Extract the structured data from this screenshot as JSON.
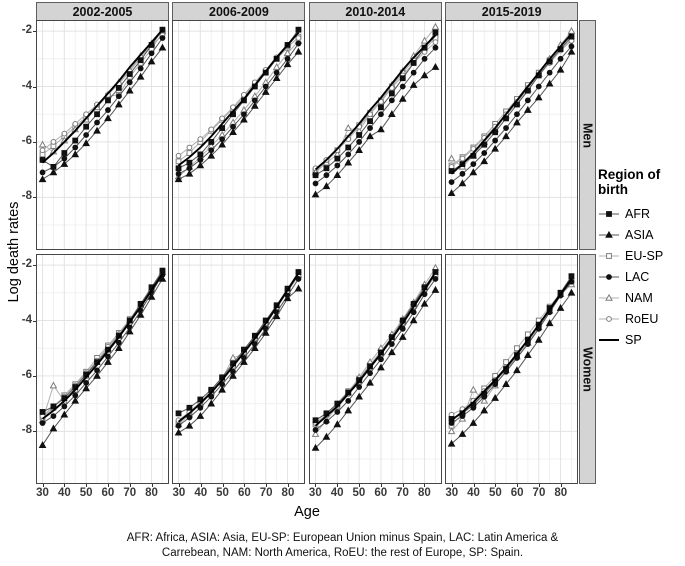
{
  "figure": {
    "y_axis_title": "Log death rates",
    "x_axis_title": "Age",
    "caption_line1": "AFR: Africa, ASIA: Asia,  EU-SP: European Union minus Spain, LAC: Latin America &",
    "caption_line2": "Carrebean, NAM: North America, RoEU: the rest of Europe,  SP: Spain."
  },
  "legend": {
    "title": "Region of birth",
    "entries": [
      {
        "id": "AFR",
        "label": "AFR"
      },
      {
        "id": "ASIA",
        "label": "ASIA"
      },
      {
        "id": "EU-SP",
        "label": "EU-SP"
      },
      {
        "id": "LAC",
        "label": "LAC"
      },
      {
        "id": "NAM",
        "label": "NAM"
      },
      {
        "id": "RoEU",
        "label": "RoEU"
      },
      {
        "id": "SP",
        "label": "SP"
      }
    ]
  },
  "chart_data": {
    "type": "line",
    "x": [
      30,
      35,
      40,
      45,
      50,
      55,
      60,
      65,
      70,
      75,
      80,
      85
    ],
    "x_ticks": [
      30,
      40,
      50,
      60,
      70,
      80
    ],
    "minor_x": [
      35,
      45,
      55,
      65,
      75,
      85
    ],
    "y_ticks": [
      -2,
      -4,
      -6,
      -8
    ],
    "minor_y": [
      -3,
      -5,
      -7,
      -9
    ],
    "xlim": [
      27,
      88
    ],
    "ylim": [
      -9.9,
      -1.6
    ],
    "xlabel": "Age",
    "ylabel": "Log death rates",
    "grid": true,
    "legend_position": "right",
    "facets": {
      "cols": [
        "2002-2005",
        "2006-2009",
        "2010-2014",
        "2015-2019"
      ],
      "rows": [
        "Men",
        "Women"
      ]
    },
    "colors": {
      "strip_bg": "#d4d4d4",
      "panel_border": "#474747",
      "grid_major": "#e3e3e3",
      "grid_minor": "#f0f0f0",
      "black": "#111111",
      "gray": "#7d7d7d",
      "gray_line": "#b0b0b0",
      "dark_line": "#555555"
    },
    "series_styles": [
      {
        "id": "EU-SP",
        "marker": "square",
        "filled": false,
        "stroke": "#7d7d7d",
        "line": "#b0b0b0",
        "lw": 1
      },
      {
        "id": "NAM",
        "marker": "triangle",
        "filled": false,
        "stroke": "#7d7d7d",
        "line": "#b0b0b0",
        "lw": 1
      },
      {
        "id": "RoEU",
        "marker": "circle",
        "filled": false,
        "stroke": "#7d7d7d",
        "line": "#b0b0b0",
        "lw": 1
      },
      {
        "id": "LAC",
        "marker": "circle",
        "filled": true,
        "stroke": "#111111",
        "line": "#555555",
        "lw": 1
      },
      {
        "id": "AFR",
        "marker": "square",
        "filled": true,
        "stroke": "#111111",
        "line": "#555555",
        "lw": 1
      },
      {
        "id": "ASIA",
        "marker": "triangle",
        "filled": true,
        "stroke": "#111111",
        "line": "#555555",
        "lw": 1
      },
      {
        "id": "SP",
        "marker": "none",
        "filled": false,
        "stroke": "#000000",
        "line": "#000000",
        "lw": 1.9
      }
    ],
    "panels": [
      {
        "row": "Men",
        "col": "2002-2005",
        "series": {
          "AFR": [
            -6.65,
            -6.9,
            -6.4,
            -5.95,
            -5.45,
            -5.0,
            -4.5,
            -4.05,
            -3.55,
            -3.05,
            -2.5,
            -1.95
          ],
          "ASIA": [
            -7.35,
            -7.1,
            -6.8,
            -6.45,
            -6.05,
            -5.6,
            -5.15,
            -4.65,
            -4.15,
            -3.65,
            -3.1,
            -2.6
          ],
          "EU-SP": [
            -6.45,
            -6.15,
            -5.8,
            -5.45,
            -5.1,
            -4.7,
            -4.35,
            -4.3,
            -3.65,
            -3.15,
            -2.65,
            -2.05
          ],
          "LAC": [
            -7.1,
            -6.9,
            -6.6,
            -6.2,
            -5.75,
            -5.3,
            -4.85,
            -4.35,
            -3.85,
            -3.35,
            -2.8,
            -2.25
          ],
          "NAM": [
            -6.1,
            -6.35,
            -5.95,
            -5.55,
            -5.2,
            -4.75,
            -4.3,
            -3.85,
            -3.4,
            -2.9,
            -2.45,
            -2.0
          ],
          "RoEU": [
            -6.3,
            -6.0,
            -5.7,
            -5.35,
            -5.0,
            -4.65,
            -4.3,
            -3.9,
            -3.45,
            -2.95,
            -2.5,
            -2.15
          ],
          "SP": [
            -6.75,
            -6.4,
            -6.0,
            -5.6,
            -5.15,
            -4.7,
            -4.25,
            -3.8,
            -3.3,
            -2.85,
            -2.4,
            -1.95
          ]
        }
      },
      {
        "row": "Men",
        "col": "2006-2009",
        "series": {
          "AFR": [
            -6.95,
            -6.75,
            -6.45,
            -6.0,
            -5.5,
            -5.0,
            -4.5,
            -4.0,
            -3.5,
            -3.0,
            -2.5,
            -1.95
          ],
          "ASIA": [
            -7.35,
            -7.15,
            -6.85,
            -6.5,
            -6.1,
            -5.65,
            -5.2,
            -4.7,
            -4.2,
            -3.7,
            -3.2,
            -2.75
          ],
          "EU-SP": [
            -6.7,
            -6.4,
            -6.0,
            -5.6,
            -5.2,
            -4.8,
            -4.35,
            -3.9,
            -3.45,
            -3.0,
            -2.6,
            -2.2
          ],
          "LAC": [
            -7.15,
            -6.95,
            -6.65,
            -6.3,
            -5.9,
            -5.45,
            -5.0,
            -4.5,
            -4.0,
            -3.5,
            -3.0,
            -2.45
          ],
          "NAM": [
            -7.25,
            -6.9,
            -6.55,
            -6.15,
            -5.75,
            -5.3,
            -4.85,
            -4.35,
            -3.85,
            -3.3,
            -2.8,
            -2.35
          ],
          "RoEU": [
            -6.5,
            -6.2,
            -5.9,
            -5.55,
            -5.15,
            -4.75,
            -4.3,
            -3.85,
            -3.4,
            -2.95,
            -2.55,
            -2.25
          ],
          "SP": [
            -6.85,
            -6.55,
            -6.2,
            -5.8,
            -5.35,
            -4.9,
            -4.45,
            -3.95,
            -3.45,
            -2.95,
            -2.5,
            -2.05
          ]
        }
      },
      {
        "row": "Men",
        "col": "2010-2014",
        "series": {
          "AFR": [
            -7.2,
            -6.95,
            -6.6,
            -6.2,
            -5.75,
            -5.25,
            -4.75,
            -4.25,
            -3.7,
            -3.15,
            -2.6,
            -2.05
          ],
          "ASIA": [
            -7.9,
            -7.6,
            -7.2,
            -6.75,
            -6.3,
            -5.8,
            -5.55,
            -5.0,
            -4.45,
            -3.95,
            -3.6,
            -3.3
          ],
          "EU-SP": [
            -7.05,
            -6.7,
            -6.3,
            -5.85,
            -5.4,
            -4.95,
            -4.5,
            -4.0,
            -3.5,
            -3.05,
            -2.65,
            -2.25
          ],
          "LAC": [
            -7.5,
            -7.2,
            -6.85,
            -6.45,
            -6.0,
            -5.5,
            -5.0,
            -4.5,
            -4.0,
            -3.5,
            -3.0,
            -2.6
          ],
          "NAM": [
            -7.1,
            -6.75,
            -6.45,
            -5.5,
            -5.6,
            -5.0,
            -4.5,
            -3.95,
            -3.45,
            -2.9,
            -2.35,
            -1.85
          ],
          "RoEU": [
            -6.95,
            -6.65,
            -6.3,
            -5.9,
            -5.45,
            -5.0,
            -4.55,
            -4.05,
            -3.6,
            -3.15,
            -2.75,
            -2.4
          ],
          "SP": [
            -7.0,
            -6.65,
            -6.25,
            -5.8,
            -5.35,
            -4.85,
            -4.4,
            -3.9,
            -3.4,
            -2.95,
            -2.55,
            -2.15
          ]
        }
      },
      {
        "row": "Men",
        "col": "2015-2019",
        "series": {
          "AFR": [
            -7.05,
            -6.8,
            -6.5,
            -6.1,
            -5.65,
            -5.15,
            -4.65,
            -4.15,
            -3.6,
            -3.1,
            -2.65,
            -2.2
          ],
          "ASIA": [
            -7.85,
            -7.5,
            -7.1,
            -6.7,
            -6.25,
            -5.8,
            -5.3,
            -4.85,
            -4.4,
            -3.9,
            -3.4,
            -2.75
          ],
          "EU-SP": [
            -6.85,
            -6.55,
            -6.2,
            -5.8,
            -5.35,
            -4.9,
            -4.45,
            -3.95,
            -3.5,
            -3.05,
            -2.65,
            -2.3
          ],
          "LAC": [
            -7.45,
            -7.15,
            -6.8,
            -6.4,
            -5.95,
            -5.5,
            -5.0,
            -4.5,
            -4.0,
            -3.5,
            -3.0,
            -2.55
          ],
          "NAM": [
            -6.6,
            -6.9,
            -6.5,
            -6.0,
            -5.55,
            -5.05,
            -4.6,
            -4.1,
            -3.55,
            -3.0,
            -2.5,
            -2.0
          ],
          "RoEU": [
            -6.9,
            -6.6,
            -6.25,
            -5.85,
            -5.45,
            -5.0,
            -4.55,
            -4.05,
            -3.6,
            -3.15,
            -2.7,
            -2.35
          ],
          "SP": [
            -7.15,
            -6.8,
            -6.4,
            -5.95,
            -5.5,
            -5.0,
            -4.5,
            -4.0,
            -3.5,
            -3.0,
            -2.55,
            -2.1
          ]
        }
      },
      {
        "row": "Women",
        "col": "2002-2005",
        "series": {
          "AFR": [
            -7.3,
            -7.1,
            -6.8,
            -6.4,
            -5.95,
            -5.5,
            -5.05,
            -4.55,
            -4.0,
            -3.4,
            -2.8,
            -2.2
          ],
          "ASIA": [
            -8.5,
            -7.9,
            -7.4,
            -6.9,
            -6.45,
            -6.0,
            -5.5,
            -5.0,
            -4.4,
            -3.8,
            -3.15,
            -2.5
          ],
          "EU-SP": [
            -7.5,
            -7.15,
            -6.7,
            -6.3,
            -5.85,
            -5.35,
            -4.9,
            -4.45,
            -3.95,
            -3.4,
            -2.85,
            -2.25
          ],
          "LAC": [
            -7.7,
            -7.45,
            -7.1,
            -6.7,
            -6.25,
            -5.8,
            -5.3,
            -4.8,
            -4.25,
            -3.65,
            -3.0,
            -2.35
          ],
          "NAM": [
            -7.6,
            -6.35,
            -6.9,
            -6.5,
            -6.0,
            -5.5,
            -5.0,
            -4.5,
            -4.0,
            -3.45,
            -2.85,
            -2.25
          ],
          "RoEU": [
            -7.45,
            -7.1,
            -6.75,
            -6.35,
            -5.9,
            -5.45,
            -4.95,
            -4.5,
            -4.0,
            -3.45,
            -2.9,
            -2.3
          ],
          "SP": [
            -7.55,
            -7.25,
            -6.9,
            -6.5,
            -6.05,
            -5.6,
            -5.1,
            -4.6,
            -4.05,
            -3.5,
            -2.9,
            -2.3
          ]
        }
      },
      {
        "row": "Women",
        "col": "2006-2009",
        "series": {
          "AFR": [
            -7.35,
            -7.15,
            -6.85,
            -6.5,
            -6.05,
            -5.55,
            -5.05,
            -4.55,
            -4.0,
            -3.45,
            -2.85,
            -2.25
          ],
          "ASIA": [
            -8.05,
            -7.8,
            -7.45,
            -7.0,
            -6.5,
            -6.0,
            -5.5,
            -5.0,
            -4.45,
            -3.85,
            -3.2,
            -2.85
          ],
          "EU-SP": [
            -7.7,
            -7.35,
            -6.95,
            -6.55,
            -6.1,
            -5.6,
            -5.1,
            -4.6,
            -4.05,
            -3.5,
            -2.95,
            -2.35
          ],
          "LAC": [
            -7.8,
            -7.5,
            -7.15,
            -6.75,
            -6.3,
            -5.85,
            -5.35,
            -4.85,
            -4.3,
            -3.7,
            -3.1,
            -2.5
          ],
          "NAM": [
            -7.75,
            -7.4,
            -7.0,
            -6.6,
            -6.1,
            -5.35,
            -5.2,
            -4.7,
            -4.15,
            -3.55,
            -2.95,
            -2.35
          ],
          "RoEU": [
            -7.6,
            -7.3,
            -6.95,
            -6.55,
            -6.1,
            -5.65,
            -5.15,
            -4.65,
            -4.1,
            -3.55,
            -2.95,
            -2.4
          ],
          "SP": [
            -7.65,
            -7.35,
            -7.0,
            -6.6,
            -6.15,
            -5.65,
            -5.15,
            -4.65,
            -4.1,
            -3.5,
            -2.9,
            -2.3
          ]
        }
      },
      {
        "row": "Women",
        "col": "2010-2014",
        "series": {
          "AFR": [
            -7.6,
            -7.35,
            -7.0,
            -6.6,
            -6.15,
            -5.65,
            -5.15,
            -4.6,
            -4.0,
            -3.4,
            -2.8,
            -2.25
          ],
          "ASIA": [
            -8.6,
            -8.2,
            -7.75,
            -7.25,
            -6.75,
            -6.25,
            -5.7,
            -5.15,
            -4.6,
            -4.0,
            -3.4,
            -2.9
          ],
          "EU-SP": [
            -7.75,
            -7.4,
            -7.0,
            -6.55,
            -6.1,
            -5.6,
            -5.1,
            -4.6,
            -4.05,
            -3.45,
            -2.85,
            -2.35
          ],
          "LAC": [
            -7.95,
            -7.65,
            -7.3,
            -6.9,
            -6.4,
            -5.9,
            -5.4,
            -4.85,
            -4.3,
            -3.7,
            -3.05,
            -2.5
          ],
          "NAM": [
            -8.1,
            -7.6,
            -7.1,
            -6.6,
            -6.05,
            -5.5,
            -5.0,
            -4.5,
            -3.95,
            -3.35,
            -2.7,
            -2.1
          ],
          "RoEU": [
            -7.7,
            -7.4,
            -7.05,
            -6.65,
            -6.2,
            -5.7,
            -5.2,
            -4.7,
            -4.1,
            -3.5,
            -2.9,
            -2.4
          ],
          "SP": [
            -7.8,
            -7.45,
            -7.1,
            -6.65,
            -6.2,
            -5.7,
            -5.2,
            -4.65,
            -4.1,
            -3.5,
            -2.9,
            -2.25
          ]
        }
      },
      {
        "row": "Women",
        "col": "2015-2019",
        "series": {
          "AFR": [
            -7.55,
            -7.35,
            -7.05,
            -6.65,
            -6.2,
            -5.75,
            -5.25,
            -4.7,
            -4.15,
            -3.55,
            -3.0,
            -2.4
          ],
          "ASIA": [
            -8.45,
            -8.1,
            -7.7,
            -7.25,
            -6.8,
            -6.3,
            -5.8,
            -5.25,
            -4.7,
            -4.1,
            -3.55,
            -3.0
          ],
          "EU-SP": [
            -7.8,
            -7.35,
            -6.9,
            -6.45,
            -6.0,
            -5.5,
            -5.0,
            -4.5,
            -4.0,
            -3.5,
            -3.0,
            -2.6
          ],
          "LAC": [
            -7.7,
            -7.45,
            -7.15,
            -6.75,
            -6.3,
            -5.85,
            -5.35,
            -4.85,
            -4.3,
            -3.7,
            -3.1,
            -2.6
          ],
          "NAM": [
            -8.0,
            -7.55,
            -6.5,
            -6.9,
            -6.35,
            -5.8,
            -5.3,
            -4.8,
            -4.25,
            -3.65,
            -3.05,
            -2.7
          ],
          "RoEU": [
            -7.4,
            -7.2,
            -6.9,
            -6.55,
            -6.15,
            -5.7,
            -5.2,
            -4.7,
            -4.15,
            -3.6,
            -3.05,
            -2.55
          ],
          "SP": [
            -7.6,
            -7.3,
            -6.95,
            -6.55,
            -6.15,
            -5.7,
            -5.2,
            -4.7,
            -4.15,
            -3.6,
            -3.05,
            -2.5
          ]
        }
      }
    ]
  }
}
